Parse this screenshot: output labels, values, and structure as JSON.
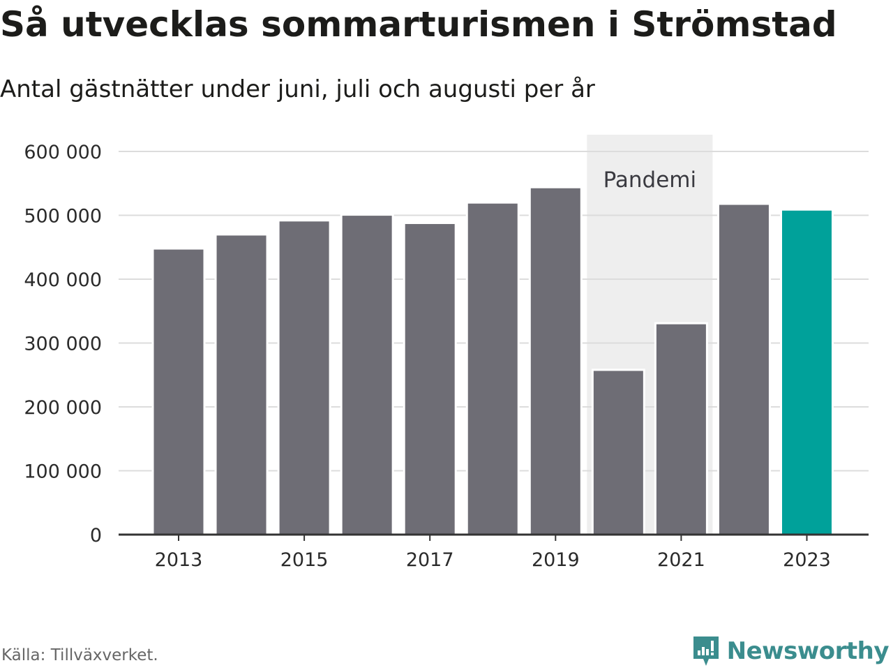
{
  "header": {
    "title": "Så utvecklas sommarturismen i Strömstad",
    "subtitle": "Antal gästnätter under juni, juli och augusti per år"
  },
  "footer": {
    "source": "Källa: Tillväxverket.",
    "brand_name": "Newsworthy"
  },
  "icons": {
    "brand": "bar-chart-speech-bubble-icon"
  },
  "colors": {
    "bar": "#6e6d75",
    "highlight": "#00a19a",
    "band": "#eeeeee",
    "grid": "#dcdcdc",
    "axis": "#333333",
    "brand": "#3b8d8e"
  },
  "chart_data": {
    "type": "bar",
    "categories": [
      "2013",
      "2014",
      "2015",
      "2016",
      "2017",
      "2018",
      "2019",
      "2020",
      "2021",
      "2022",
      "2023"
    ],
    "values": [
      448000,
      470000,
      492000,
      501000,
      488000,
      520000,
      544000,
      258000,
      331000,
      518000,
      509000
    ],
    "highlight_category": "2023",
    "x_tick_labels": [
      "2013",
      "2015",
      "2017",
      "2019",
      "2021",
      "2023"
    ],
    "y_ticks": [
      0,
      100000,
      200000,
      300000,
      400000,
      500000,
      600000
    ],
    "y_tick_labels": [
      "0",
      "100 000",
      "200 000",
      "300 000",
      "400 000",
      "500 000",
      "600 000"
    ],
    "ylim": [
      0,
      600000
    ],
    "grid": true,
    "annotation": {
      "label": "Pandemi",
      "from": "2020",
      "to": "2021"
    }
  }
}
